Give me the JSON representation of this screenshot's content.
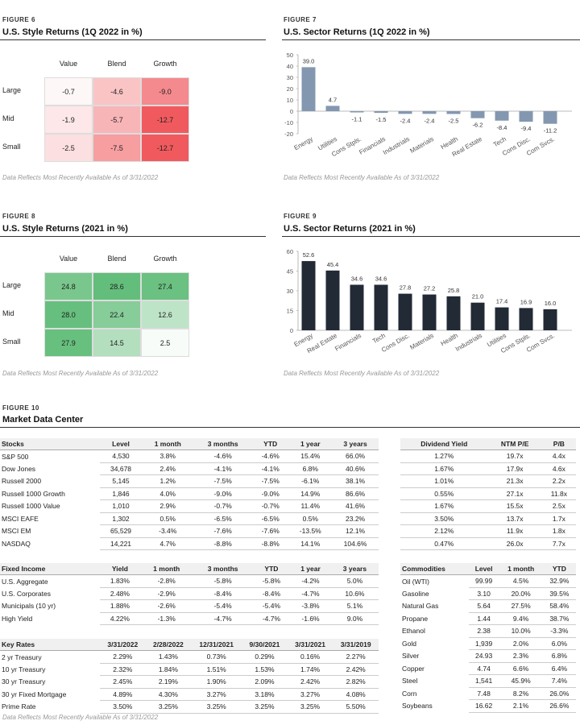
{
  "fig6": {
    "label": "FIGURE 6",
    "title": "U.S. Style Returns (1Q 2022 in %)",
    "columns": [
      "Value",
      "Blend",
      "Growth"
    ],
    "rows": [
      "Large",
      "Mid",
      "Small"
    ],
    "values": [
      [
        -0.7,
        -4.6,
        -9.0
      ],
      [
        -1.9,
        -5.7,
        -12.7
      ],
      [
        -2.5,
        -7.5,
        -12.7
      ]
    ],
    "color": "#f05a5e",
    "note": "Data Reflects Most Recently Available As of 3/31/2022"
  },
  "fig8": {
    "label": "FIGURE 8",
    "title": "U.S. Style Returns (2021 in %)",
    "columns": [
      "Value",
      "Blend",
      "Growth"
    ],
    "rows": [
      "Large",
      "Mid",
      "Small"
    ],
    "values": [
      [
        24.8,
        28.6,
        27.4
      ],
      [
        28.0,
        22.4,
        12.6
      ],
      [
        27.9,
        14.5,
        2.5
      ]
    ],
    "color": "#63be7b",
    "note": "Data Reflects Most Recently Available As of 3/31/2022"
  },
  "fig7": {
    "label": "FIGURE 7",
    "title": "U.S. Sector Returns (1Q 2022 in %)",
    "note": "Data Reflects Most Recently Available As of 3/31/2022"
  },
  "fig9": {
    "label": "FIGURE 9",
    "title": "U.S. Sector Returns (2021 in %)",
    "note": "Data Reflects Most Recently Available As of 3/31/2022"
  },
  "chart_data": [
    {
      "type": "bar",
      "title": "U.S. Sector Returns (1Q 2022 in %)",
      "categories": [
        "Energy",
        "Utilities",
        "Cons Stpls.",
        "Financials",
        "Industrials",
        "Materials",
        "Health",
        "Real Estate",
        "Tech",
        "Cons Disc.",
        "Com Svcs."
      ],
      "values": [
        39.0,
        4.7,
        -1.1,
        -1.5,
        -2.4,
        -2.4,
        -2.5,
        -6.2,
        -8.4,
        -9.4,
        -11.2
      ],
      "ylim": [
        -20,
        50
      ],
      "yticks": [
        50,
        40,
        30,
        20,
        10,
        0,
        -10,
        -20
      ],
      "color": "#8497b0"
    },
    {
      "type": "bar",
      "title": "U.S. Sector Returns (2021 in %)",
      "categories": [
        "Energy",
        "Real Estate",
        "Financials",
        "Tech",
        "Cons Disc.",
        "Materials",
        "Health",
        "Industrials",
        "Utilities",
        "Cons Stpls.",
        "Com Svcs."
      ],
      "values": [
        52.6,
        45.4,
        34.6,
        34.6,
        27.8,
        27.2,
        25.8,
        21.0,
        17.4,
        16.9,
        16.0
      ],
      "ylim": [
        0,
        60
      ],
      "yticks": [
        60,
        45,
        30,
        15,
        0
      ],
      "color": "#222a35"
    }
  ],
  "fig10": {
    "label": "FIGURE 10",
    "title": "Market Data Center",
    "note": "Data Reflects Most Recently Available As of 3/31/2022",
    "stocks": {
      "headers": [
        "Stocks",
        "Level",
        "1 month",
        "3 months",
        "YTD",
        "1 year",
        "3 years"
      ],
      "rows": [
        [
          "S&P 500",
          "4,530",
          "3.8%",
          "-4.6%",
          "-4.6%",
          "15.4%",
          "66.0%"
        ],
        [
          "Dow Jones",
          "34,678",
          "2.4%",
          "-4.1%",
          "-4.1%",
          "6.8%",
          "40.6%"
        ],
        [
          "Russell 2000",
          "5,145",
          "1.2%",
          "-7.5%",
          "-7.5%",
          "-6.1%",
          "38.1%"
        ],
        [
          "Russell 1000 Growth",
          "1,846",
          "4.0%",
          "-9.0%",
          "-9.0%",
          "14.9%",
          "86.6%"
        ],
        [
          "Russell 1000 Value",
          "1,010",
          "2.9%",
          "-0.7%",
          "-0.7%",
          "11.4%",
          "41.6%"
        ],
        [
          "MSCI EAFE",
          "1,302",
          "0.5%",
          "-6.5%",
          "-6.5%",
          "0.5%",
          "23.2%"
        ],
        [
          "MSCI EM",
          "65,529",
          "-3.4%",
          "-7.6%",
          "-7.6%",
          "-13.5%",
          "12.1%"
        ],
        [
          "NASDAQ",
          "14,221",
          "4.7%",
          "-8.8%",
          "-8.8%",
          "14.1%",
          "104.6%"
        ]
      ]
    },
    "valuation": {
      "headers": [
        "Dividend Yield",
        "NTM P/E",
        "P/B"
      ],
      "rows": [
        [
          "1.27%",
          "19.7x",
          "4.4x"
        ],
        [
          "1.67%",
          "17.9x",
          "4.6x"
        ],
        [
          "1.01%",
          "21.3x",
          "2.2x"
        ],
        [
          "0.55%",
          "27.1x",
          "11.8x"
        ],
        [
          "1.67%",
          "15.5x",
          "2.5x"
        ],
        [
          "3.50%",
          "13.7x",
          "1.7x"
        ],
        [
          "2.12%",
          "11.9x",
          "1.8x"
        ],
        [
          "0.47%",
          "26.0x",
          "7.7x"
        ]
      ]
    },
    "fixed_income": {
      "headers": [
        "Fixed Income",
        "Yield",
        "1 month",
        "3 months",
        "YTD",
        "1 year",
        "3 years"
      ],
      "rows": [
        [
          "U.S. Aggregate",
          "1.83%",
          "-2.8%",
          "-5.8%",
          "-5.8%",
          "-4.2%",
          "5.0%"
        ],
        [
          "U.S. Corporates",
          "2.48%",
          "-2.9%",
          "-8.4%",
          "-8.4%",
          "-4.7%",
          "10.6%"
        ],
        [
          "Municipals (10 yr)",
          "1.88%",
          "-2.6%",
          "-5.4%",
          "-5.4%",
          "-3.8%",
          "5.1%"
        ],
        [
          "High Yield",
          "4.22%",
          "-1.3%",
          "-4.7%",
          "-4.7%",
          "-1.6%",
          "9.0%"
        ]
      ]
    },
    "key_rates": {
      "headers": [
        "Key Rates",
        "3/31/2022",
        "2/28/2022",
        "12/31/2021",
        "9/30/2021",
        "3/31/2021",
        "3/31/2019"
      ],
      "rows": [
        [
          "2 yr Treasury",
          "2.29%",
          "1.43%",
          "0.73%",
          "0.29%",
          "0.16%",
          "2.27%"
        ],
        [
          "10 yr Treasury",
          "2.32%",
          "1.84%",
          "1.51%",
          "1.53%",
          "1.74%",
          "2.42%"
        ],
        [
          "30 yr Treasury",
          "2.45%",
          "2.19%",
          "1.90%",
          "2.09%",
          "2.42%",
          "2.82%"
        ],
        [
          "30 yr Fixed Mortgage",
          "4.89%",
          "4.30%",
          "3.27%",
          "3.18%",
          "3.27%",
          "4.08%"
        ],
        [
          "Prime Rate",
          "3.50%",
          "3.25%",
          "3.25%",
          "3.25%",
          "3.25%",
          "5.50%"
        ]
      ]
    },
    "commodities": {
      "headers": [
        "Commodities",
        "Level",
        "1 month",
        "YTD"
      ],
      "rows": [
        [
          "Oil (WTI)",
          "99.99",
          "4.5%",
          "32.9%"
        ],
        [
          "Gasoline",
          "3.10",
          "20.0%",
          "39.5%"
        ],
        [
          "Natural Gas",
          "5.64",
          "27.5%",
          "58.4%"
        ],
        [
          "Propane",
          "1.44",
          "9.4%",
          "38.7%"
        ],
        [
          "Ethanol",
          "2.38",
          "10.0%",
          "-3.3%"
        ],
        [
          "Gold",
          "1,939",
          "2.0%",
          "6.0%"
        ],
        [
          "Silver",
          "24.93",
          "2.3%",
          "6.8%"
        ],
        [
          "Copper",
          "4.74",
          "6.6%",
          "6.4%"
        ],
        [
          "Steel",
          "1,541",
          "45.9%",
          "7.4%"
        ],
        [
          "Corn",
          "7.48",
          "8.2%",
          "26.0%"
        ],
        [
          "Soybeans",
          "16.62",
          "2.1%",
          "26.6%"
        ]
      ]
    }
  }
}
